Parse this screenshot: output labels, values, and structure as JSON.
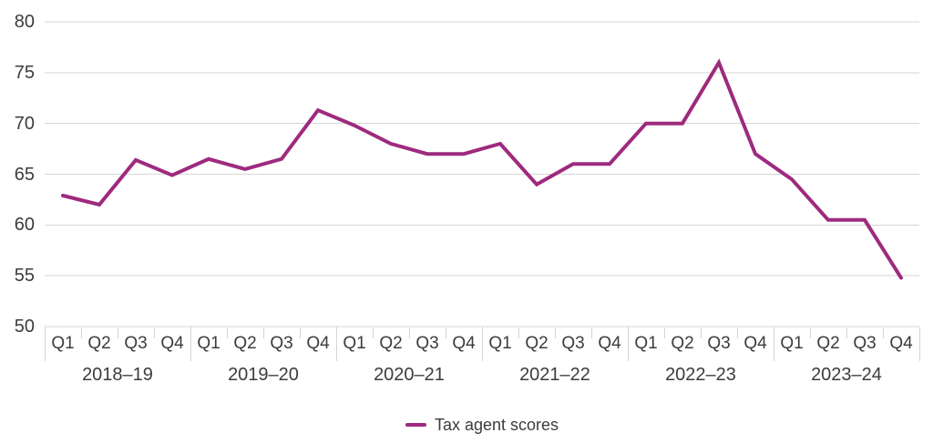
{
  "chart": {
    "colors": {
      "line": "#9E2A7E",
      "grid": "#D6D6D6",
      "text": "#3C3C3C",
      "background": "#FFFFFF"
    }
  },
  "chart_data": {
    "type": "line",
    "title": "",
    "xlabel": "",
    "ylabel": "",
    "ylim": [
      50,
      80
    ],
    "y_ticks": [
      80,
      75,
      70,
      65,
      60,
      55,
      50
    ],
    "grid": "horizontal",
    "legend_position": "bottom-center",
    "x_groups": [
      {
        "label": "2018–19",
        "quarters": [
          "Q1",
          "Q2",
          "Q3",
          "Q4"
        ]
      },
      {
        "label": "2019–20",
        "quarters": [
          "Q1",
          "Q2",
          "Q3",
          "Q4"
        ]
      },
      {
        "label": "2020–21",
        "quarters": [
          "Q1",
          "Q2",
          "Q3",
          "Q4"
        ]
      },
      {
        "label": "2021–22",
        "quarters": [
          "Q1",
          "Q2",
          "Q3",
          "Q4"
        ]
      },
      {
        "label": "2022–23",
        "quarters": [
          "Q1",
          "Q2",
          "Q3",
          "Q4"
        ]
      },
      {
        "label": "2023–24",
        "quarters": [
          "Q1",
          "Q2",
          "Q3",
          "Q4"
        ]
      }
    ],
    "series": [
      {
        "name": "Tax agent scores",
        "color": "#9E2A7E",
        "values": [
          62.9,
          62.0,
          66.4,
          64.9,
          66.5,
          65.5,
          66.5,
          71.3,
          69.8,
          68.0,
          67.0,
          67.0,
          68.0,
          64.0,
          66.0,
          66.0,
          70.0,
          70.0,
          76.0,
          67.0,
          64.5,
          60.5,
          60.5,
          54.8
        ]
      }
    ]
  }
}
